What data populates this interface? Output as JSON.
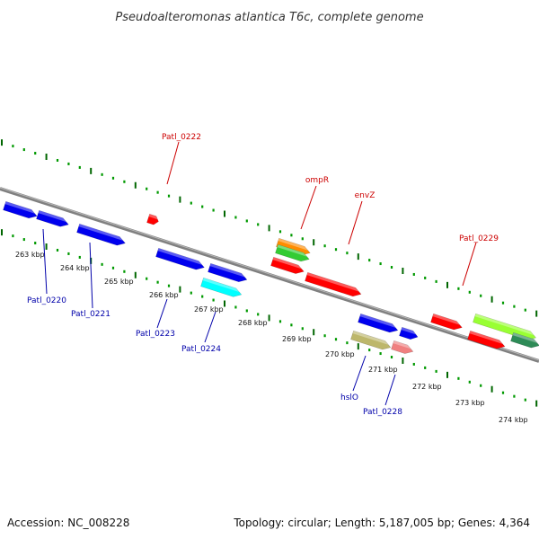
{
  "title": "Pseudoalteromonas atlantica T6c, complete genome",
  "footer": {
    "accession": "Accession: NC_008228",
    "summary": "Topology: circular; Length: 5,187,005 bp; Genes: 4,364"
  },
  "colors": {
    "backbone": "#808080",
    "tick_dark": "#006600",
    "tick_light": "#009900",
    "label_forward": "#cc0000",
    "label_reverse": "#0000aa"
  },
  "kbp_labels": [
    "263 kbp",
    "264 kbp",
    "265 kbp",
    "266 kbp",
    "267 kbp",
    "268 kbp",
    "269 kbp",
    "270 kbp",
    "271 kbp",
    "272 kbp",
    "273 kbp",
    "274 kbp"
  ],
  "gene_labels": [
    {
      "text": "Patl_0222",
      "strand": "forward"
    },
    {
      "text": "ompR",
      "strand": "forward"
    },
    {
      "text": "envZ",
      "strand": "forward"
    },
    {
      "text": "Patl_0229",
      "strand": "forward"
    },
    {
      "text": "Patl_0220",
      "strand": "reverse"
    },
    {
      "text": "Patl_0221",
      "strand": "reverse"
    },
    {
      "text": "Patl_0223",
      "strand": "reverse"
    },
    {
      "text": "Patl_0224",
      "strand": "reverse"
    },
    {
      "text": "hslO",
      "strand": "reverse"
    },
    {
      "text": "Patl_0228",
      "strand": "reverse"
    }
  ],
  "genes": [
    {
      "strand": "reverse",
      "color": "#0000ee"
    },
    {
      "strand": "reverse",
      "color": "#0000ee"
    },
    {
      "strand": "reverse",
      "color": "#0000ee"
    },
    {
      "strand": "forward",
      "color": "#ff0000"
    },
    {
      "strand": "reverse",
      "color": "#0000ee"
    },
    {
      "strand": "reverse",
      "color": "#0000ee"
    },
    {
      "strand": "reverse",
      "color": "#00ffff"
    },
    {
      "strand": "forward",
      "color": "#ff8c00"
    },
    {
      "strand": "forward",
      "color": "#33cc33"
    },
    {
      "strand": "forward",
      "color": "#ff0000"
    },
    {
      "strand": "forward",
      "color": "#ff0000"
    },
    {
      "strand": "reverse",
      "color": "#0000ee"
    },
    {
      "strand": "reverse",
      "color": "#0000ee"
    },
    {
      "strand": "reverse",
      "color": "#bdb76b"
    },
    {
      "strand": "reverse",
      "color": "#f08080"
    },
    {
      "strand": "forward",
      "color": "#ff0000"
    },
    {
      "strand": "forward",
      "color": "#99ff33"
    },
    {
      "strand": "forward",
      "color": "#ff0000"
    },
    {
      "strand": "forward",
      "color": "#2e8b57"
    }
  ]
}
